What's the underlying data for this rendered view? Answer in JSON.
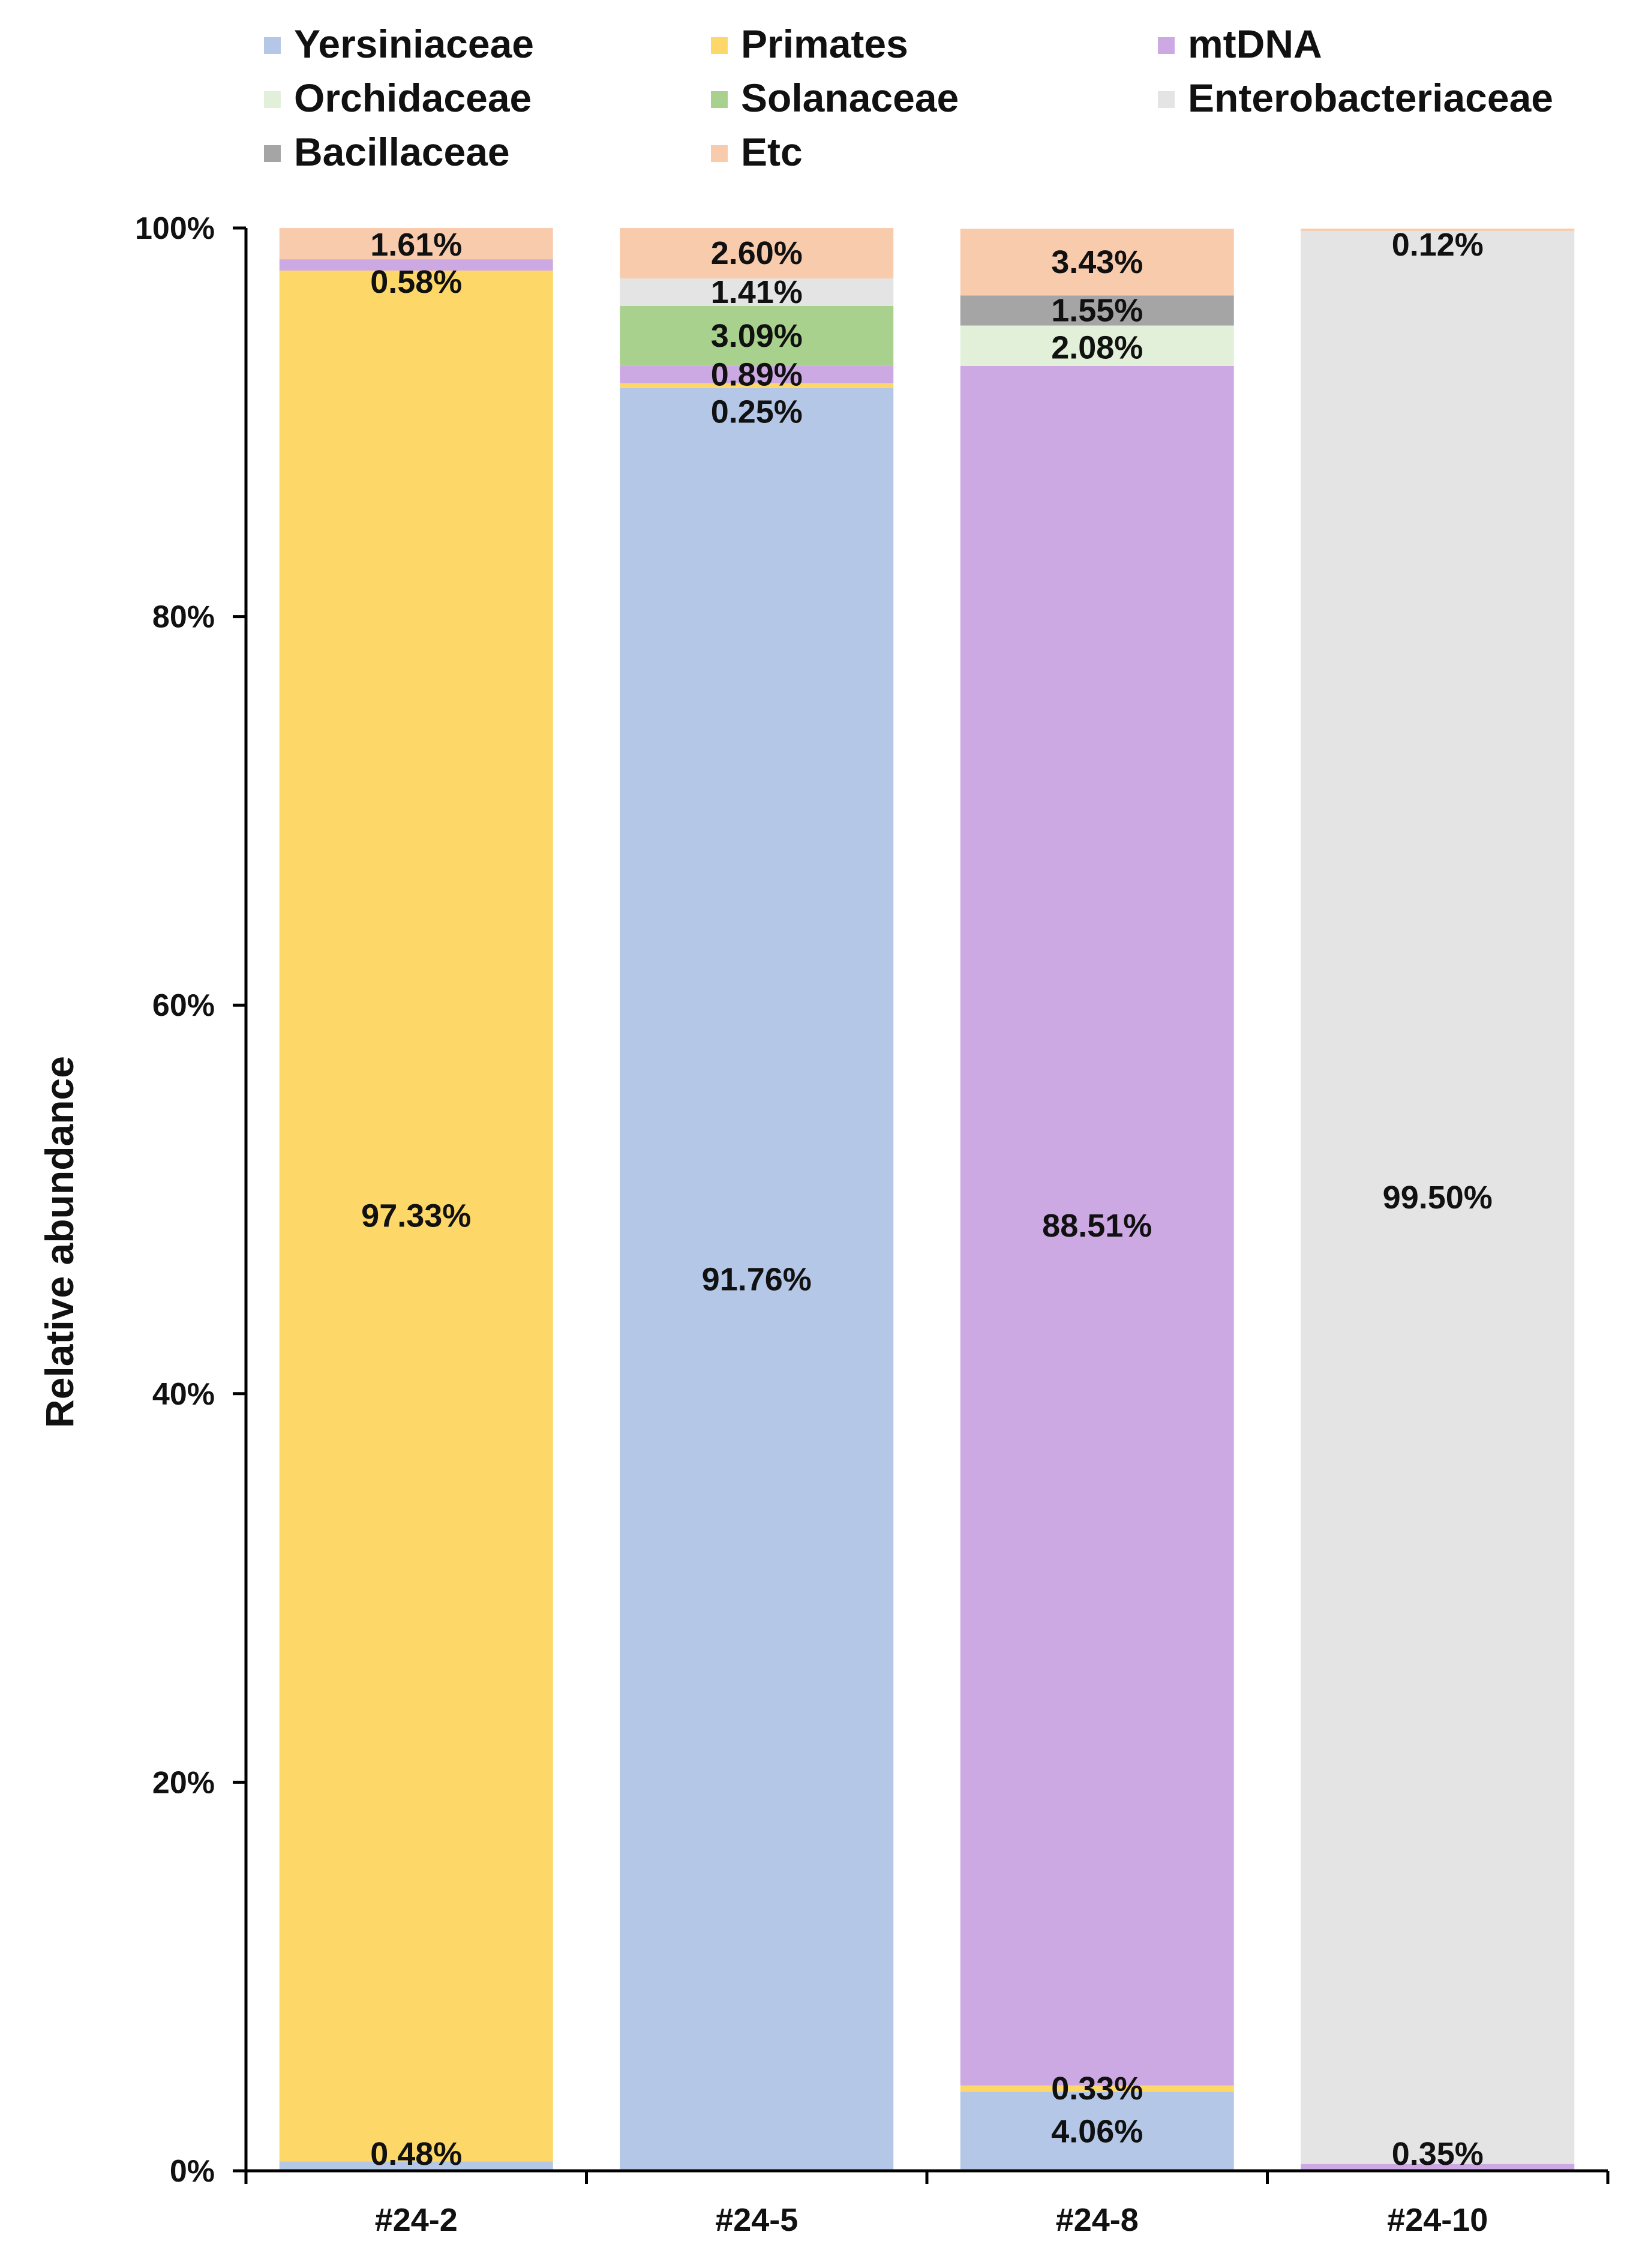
{
  "chart_data": {
    "type": "bar",
    "stacked": true,
    "ylabel": "Relative abundance",
    "xlabel": "",
    "title": "",
    "ylim": [
      0,
      100
    ],
    "yticks": [
      "0%",
      "20%",
      "40%",
      "60%",
      "80%",
      "100%"
    ],
    "ytick_values": [
      0,
      20,
      40,
      60,
      80,
      100
    ],
    "categories": [
      "#24-2",
      "#24-5",
      "#24-8",
      "#24-10"
    ],
    "legend": {
      "placement": "top",
      "columns": 3
    },
    "series": [
      {
        "name": "Yersiniaceae",
        "color": "#B4C7E7",
        "values": [
          0.48,
          91.76,
          4.06,
          0
        ],
        "labels": [
          "0.48%",
          "91.76%",
          "4.06%",
          ""
        ]
      },
      {
        "name": "Primates",
        "color": "#FDD868",
        "values": [
          97.33,
          0.25,
          0.33,
          0
        ],
        "labels": [
          "97.33%",
          "0.25%",
          "0.33%",
          ""
        ]
      },
      {
        "name": "mtDNA",
        "color": "#CDA9E3",
        "values": [
          0.58,
          0.89,
          88.51,
          0.35
        ],
        "labels": [
          "0.58%",
          "0.89%",
          "88.51%",
          "0.35%"
        ]
      },
      {
        "name": "Orchidaceae",
        "color": "#E2F0D9",
        "values": [
          0,
          0,
          2.08,
          0
        ],
        "labels": [
          "",
          "",
          "2.08%",
          ""
        ]
      },
      {
        "name": "Solanaceae",
        "color": "#A9D18E",
        "values": [
          0,
          3.09,
          0,
          0
        ],
        "labels": [
          "",
          "3.09%",
          "",
          ""
        ]
      },
      {
        "name": "Enterobacteriaceae",
        "color": "#E4E4E4",
        "values": [
          0,
          1.41,
          0,
          99.5
        ],
        "labels": [
          "",
          "1.41%",
          "",
          "99.50%"
        ]
      },
      {
        "name": "Bacillaceae",
        "color": "#A5A5A5",
        "values": [
          0,
          0,
          1.55,
          0
        ],
        "labels": [
          "",
          "",
          "1.55%",
          ""
        ]
      },
      {
        "name": "Etc",
        "color": "#F8CBAD",
        "values": [
          1.61,
          2.6,
          3.43,
          0.12
        ],
        "labels": [
          "1.61%",
          "2.60%",
          "3.43%",
          "0.12%"
        ]
      }
    ]
  }
}
